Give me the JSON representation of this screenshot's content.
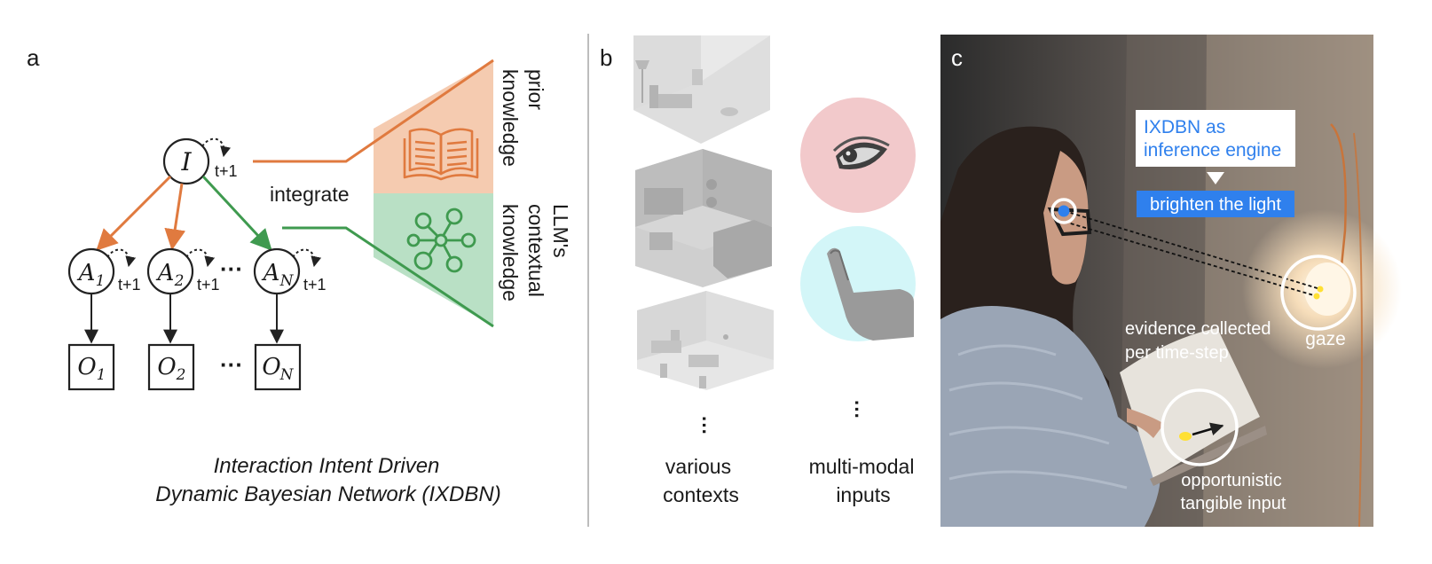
{
  "panel_a": {
    "label": "a",
    "intent_node": "I",
    "time_step": "t+1",
    "action_nodes": [
      {
        "letter": "A",
        "sub": "1"
      },
      {
        "letter": "A",
        "sub": "2"
      },
      {
        "letter": "A",
        "sub": "N"
      }
    ],
    "observation_nodes": [
      {
        "letter": "O",
        "sub": "1"
      },
      {
        "letter": "O",
        "sub": "2"
      },
      {
        "letter": "O",
        "sub": "N"
      }
    ],
    "ellipsis": "···",
    "integrate_label": "integrate",
    "prior_knowledge_label": [
      "prior",
      "knowledge"
    ],
    "llm_knowledge_label": [
      "LLM's",
      "contextual",
      "knowledge"
    ],
    "caption_line1": "Interaction Intent Driven",
    "caption_line2": "Dynamic Bayesian Network (IXDBN)",
    "colors": {
      "orange": "#e07a3f",
      "orange_fill": "#f5cbb0",
      "green": "#3f9a4f",
      "green_fill": "#b9e0c5"
    }
  },
  "panel_b": {
    "label": "b",
    "contexts_label": [
      "various",
      "contexts"
    ],
    "inputs_label": [
      "multi-modal",
      "inputs"
    ],
    "colors": {
      "eye_bg": "#f2c9cb",
      "hand_bg": "#d3f6f8"
    }
  },
  "panel_c": {
    "label": "c",
    "engine_label": [
      "IXDBN as",
      "inference engine"
    ],
    "action_label": "brighten the light",
    "evidence_label": [
      "evidence collected",
      "per time-step"
    ],
    "gaze_label": "gaze",
    "tangible_label": [
      "opportunistic",
      "tangible input"
    ],
    "colors": {
      "accent": "#2f80ed"
    }
  }
}
